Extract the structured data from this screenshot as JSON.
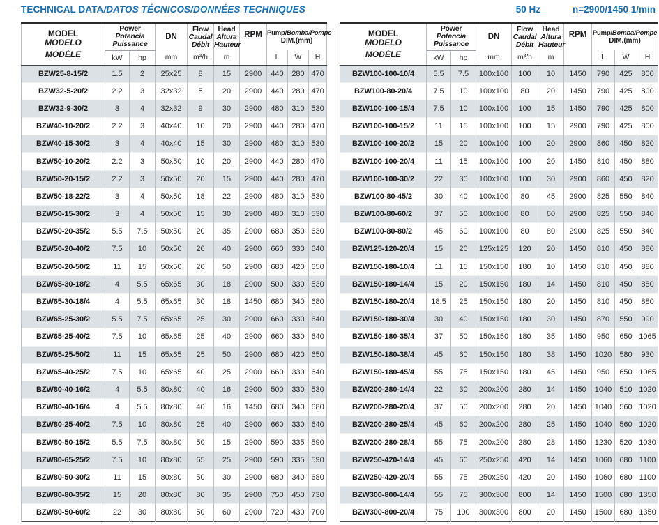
{
  "title": {
    "main": "TECHNICAL DATA",
    "rest": "/DATOS TÉCNICOS/DONNÉES TECHNIQUES"
  },
  "top_right": {
    "frequency": "50 Hz",
    "speed": "n=2900/1450 1/min"
  },
  "colors": {
    "accent_blue": "#1e6fad",
    "row_shade": "#dce1e6",
    "grid_line": "#b9bfc5",
    "top_border": "#2b2b2b",
    "header_rule": "#3f4347"
  },
  "table_header": {
    "model_lines": [
      "MODEL",
      "MODELO",
      "MODÈLE"
    ],
    "power_lines": [
      "Power",
      "Potencia",
      "Puissance"
    ],
    "power_units": [
      "kW",
      "hp"
    ],
    "dn_label": "DN",
    "dn_unit": "mm",
    "flow_lines": [
      "Flow",
      "Caudal",
      "Débit"
    ],
    "flow_unit": "m³/h",
    "head_lines": [
      "Head",
      "Altura",
      "Hauteur"
    ],
    "head_unit": "m",
    "rpm_label": "RPM",
    "pump_line_en": "Pump/",
    "pump_line_intl": "Bomba/Pompe",
    "pump_line2": "DIM.(mm)",
    "dim_units": [
      "L",
      "W",
      "H"
    ]
  },
  "tables": {
    "left": {
      "rows": [
        [
          "BZW25-8-15/2",
          "1.5",
          "2",
          "25x25",
          "8",
          "15",
          "2900",
          "440",
          "280",
          "470"
        ],
        [
          "BZW32-5-20/2",
          "2.2",
          "3",
          "32x32",
          "5",
          "20",
          "2900",
          "440",
          "280",
          "470"
        ],
        [
          "BZW32-9-30/2",
          "3",
          "4",
          "32x32",
          "9",
          "30",
          "2900",
          "480",
          "310",
          "530"
        ],
        [
          "BZW40-10-20/2",
          "2.2",
          "3",
          "40x40",
          "10",
          "20",
          "2900",
          "440",
          "280",
          "470"
        ],
        [
          "BZW40-15-30/2",
          "3",
          "4",
          "40x40",
          "15",
          "30",
          "2900",
          "480",
          "310",
          "530"
        ],
        [
          "BZW50-10-20/2",
          "2.2",
          "3",
          "50x50",
          "10",
          "20",
          "2900",
          "440",
          "280",
          "470"
        ],
        [
          "BZW50-20-15/2",
          "2.2",
          "3",
          "50x50",
          "20",
          "15",
          "2900",
          "440",
          "280",
          "470"
        ],
        [
          "BZW50-18-22/2",
          "3",
          "4",
          "50x50",
          "18",
          "22",
          "2900",
          "480",
          "310",
          "530"
        ],
        [
          "BZW50-15-30/2",
          "3",
          "4",
          "50x50",
          "15",
          "30",
          "2900",
          "480",
          "310",
          "530"
        ],
        [
          "BZW50-20-35/2",
          "5.5",
          "7.5",
          "50x50",
          "20",
          "35",
          "2900",
          "680",
          "350",
          "630"
        ],
        [
          "BZW50-20-40/2",
          "7.5",
          "10",
          "50x50",
          "20",
          "40",
          "2900",
          "660",
          "330",
          "640"
        ],
        [
          "BZW50-20-50/2",
          "11",
          "15",
          "50x50",
          "20",
          "50",
          "2900",
          "680",
          "420",
          "650"
        ],
        [
          "BZW65-30-18/2",
          "4",
          "5.5",
          "65x65",
          "30",
          "18",
          "2900",
          "500",
          "330",
          "530"
        ],
        [
          "BZW65-30-18/4",
          "4",
          "5.5",
          "65x65",
          "30",
          "18",
          "1450",
          "680",
          "340",
          "680"
        ],
        [
          "BZW65-25-30/2",
          "5.5",
          "7.5",
          "65x65",
          "25",
          "30",
          "2900",
          "660",
          "330",
          "640"
        ],
        [
          "BZW65-25-40/2",
          "7.5",
          "10",
          "65x65",
          "25",
          "40",
          "2900",
          "660",
          "330",
          "640"
        ],
        [
          "BZW65-25-50/2",
          "11",
          "15",
          "65x65",
          "25",
          "50",
          "2900",
          "680",
          "420",
          "650"
        ],
        [
          "BZW65-40-25/2",
          "7.5",
          "10",
          "65x65",
          "40",
          "25",
          "2900",
          "660",
          "330",
          "640"
        ],
        [
          "BZW80-40-16/2",
          "4",
          "5.5",
          "80x80",
          "40",
          "16",
          "2900",
          "500",
          "330",
          "530"
        ],
        [
          "BZW80-40-16/4",
          "4",
          "5.5",
          "80x80",
          "40",
          "16",
          "1450",
          "680",
          "340",
          "680"
        ],
        [
          "BZW80-25-40/2",
          "7.5",
          "10",
          "80x80",
          "25",
          "40",
          "2900",
          "660",
          "330",
          "640"
        ],
        [
          "BZW80-50-15/2",
          "5.5",
          "7.5",
          "80x80",
          "50",
          "15",
          "2900",
          "590",
          "335",
          "590"
        ],
        [
          "BZW80-65-25/2",
          "7.5",
          "10",
          "80x80",
          "65",
          "25",
          "2900",
          "590",
          "335",
          "590"
        ],
        [
          "BZW80-50-30/2",
          "11",
          "15",
          "80x80",
          "50",
          "30",
          "2900",
          "680",
          "340",
          "680"
        ],
        [
          "BZW80-80-35/2",
          "15",
          "20",
          "80x80",
          "80",
          "35",
          "2900",
          "750",
          "450",
          "730"
        ],
        [
          "BZW80-50-60/2",
          "22",
          "30",
          "80x80",
          "50",
          "60",
          "2900",
          "720",
          "430",
          "700"
        ]
      ]
    },
    "right": {
      "rows": [
        [
          "BZW100-100-10/4",
          "5.5",
          "7.5",
          "100x100",
          "100",
          "10",
          "1450",
          "790",
          "425",
          "800"
        ],
        [
          "BZW100-80-20/4",
          "7.5",
          "10",
          "100x100",
          "80",
          "20",
          "1450",
          "790",
          "425",
          "800"
        ],
        [
          "BZW100-100-15/4",
          "7.5",
          "10",
          "100x100",
          "100",
          "15",
          "1450",
          "790",
          "425",
          "800"
        ],
        [
          "BZW100-100-15/2",
          "11",
          "15",
          "100x100",
          "100",
          "15",
          "2900",
          "790",
          "425",
          "800"
        ],
        [
          "BZW100-100-20/2",
          "15",
          "20",
          "100x100",
          "100",
          "20",
          "2900",
          "860",
          "450",
          "820"
        ],
        [
          "BZW100-100-20/4",
          "11",
          "15",
          "100x100",
          "100",
          "20",
          "1450",
          "810",
          "450",
          "880"
        ],
        [
          "BZW100-100-30/2",
          "22",
          "30",
          "100x100",
          "100",
          "30",
          "2900",
          "860",
          "450",
          "820"
        ],
        [
          "BZW100-80-45/2",
          "30",
          "40",
          "100x100",
          "80",
          "45",
          "2900",
          "825",
          "550",
          "840"
        ],
        [
          "BZW100-80-60/2",
          "37",
          "50",
          "100x100",
          "80",
          "60",
          "2900",
          "825",
          "550",
          "840"
        ],
        [
          "BZW100-80-80/2",
          "45",
          "60",
          "100x100",
          "80",
          "80",
          "2900",
          "825",
          "550",
          "840"
        ],
        [
          "BZW125-120-20/4",
          "15",
          "20",
          "125x125",
          "120",
          "20",
          "1450",
          "810",
          "450",
          "880"
        ],
        [
          "BZW150-180-10/4",
          "11",
          "15",
          "150x150",
          "180",
          "10",
          "1450",
          "810",
          "450",
          "880"
        ],
        [
          "BZW150-180-14/4",
          "15",
          "20",
          "150x150",
          "180",
          "14",
          "1450",
          "810",
          "450",
          "880"
        ],
        [
          "BZW150-180-20/4",
          "18.5",
          "25",
          "150x150",
          "180",
          "20",
          "1450",
          "810",
          "450",
          "880"
        ],
        [
          "BZW150-180-30/4",
          "30",
          "40",
          "150x150",
          "180",
          "30",
          "1450",
          "870",
          "550",
          "990"
        ],
        [
          "BZW150-180-35/4",
          "37",
          "50",
          "150x150",
          "180",
          "35",
          "1450",
          "950",
          "650",
          "1065"
        ],
        [
          "BZW150-180-38/4",
          "45",
          "60",
          "150x150",
          "180",
          "38",
          "1450",
          "1020",
          "580",
          "930"
        ],
        [
          "BZW150-180-45/4",
          "55",
          "75",
          "150x150",
          "180",
          "45",
          "1450",
          "950",
          "650",
          "1065"
        ],
        [
          "BZW200-280-14/4",
          "22",
          "30",
          "200x200",
          "280",
          "14",
          "1450",
          "1040",
          "510",
          "1020"
        ],
        [
          "BZW200-280-20/4",
          "37",
          "50",
          "200x200",
          "280",
          "20",
          "1450",
          "1040",
          "560",
          "1020"
        ],
        [
          "BZW200-280-25/4",
          "45",
          "60",
          "200x200",
          "280",
          "25",
          "1450",
          "1040",
          "560",
          "1020"
        ],
        [
          "BZW200-280-28/4",
          "55",
          "75",
          "200x200",
          "280",
          "28",
          "1450",
          "1230",
          "520",
          "1030"
        ],
        [
          "BZW250-420-14/4",
          "45",
          "60",
          "250x250",
          "420",
          "14",
          "1450",
          "1060",
          "680",
          "1100"
        ],
        [
          "BZW250-420-20/4",
          "55",
          "75",
          "250x250",
          "420",
          "20",
          "1450",
          "1060",
          "680",
          "1100"
        ],
        [
          "BZW300-800-14/4",
          "55",
          "75",
          "300x300",
          "800",
          "14",
          "1450",
          "1500",
          "680",
          "1350"
        ],
        [
          "BZW300-800-20/4",
          "75",
          "100",
          "300x300",
          "800",
          "20",
          "1450",
          "1500",
          "680",
          "1350"
        ]
      ]
    }
  }
}
